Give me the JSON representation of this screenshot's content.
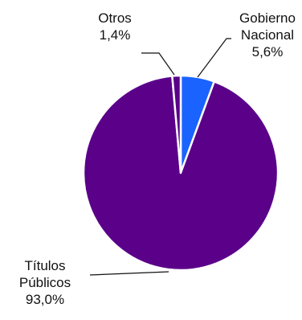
{
  "chart_data": {
    "type": "pie",
    "start": "top",
    "direction": "clockwise",
    "slices": [
      {
        "label_lines": [
          "Gobierno",
          "Nacional"
        ],
        "value_label": "5,6%",
        "value": 5.6,
        "color": "#1a63ff"
      },
      {
        "label_lines": [
          "Títulos",
          "Públicos"
        ],
        "value_label": "93,0%",
        "value": 93.0,
        "color": "#5a0089"
      },
      {
        "label_lines": [
          "Otros"
        ],
        "value_label": "1,4%",
        "value": 1.4,
        "color": "#5a0089"
      }
    ]
  }
}
